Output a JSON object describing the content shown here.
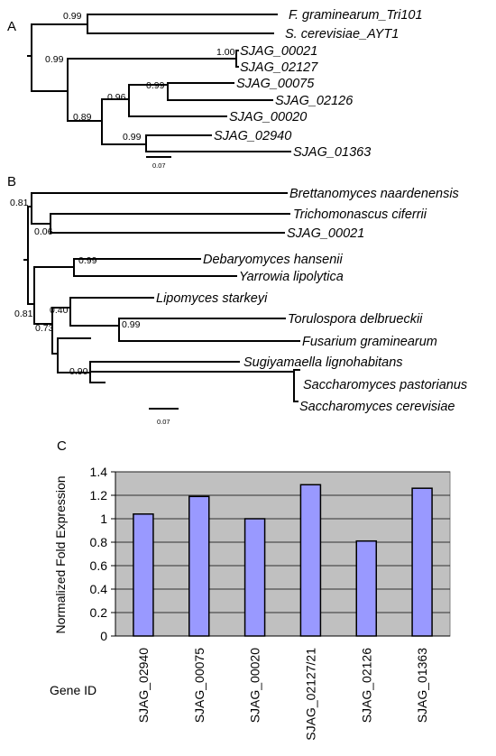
{
  "panel_a": {
    "label": "A",
    "taxa": [
      "F. graminearum_Tri101",
      "S. cerevisiae_AYT1",
      "SJAG_00021",
      "SJAG_02127",
      "SJAG_00075",
      "SJAG_02126",
      "SJAG_00020",
      "SJAG_02940",
      "SJAG_01363"
    ],
    "supports": [
      "0.99",
      "1.00",
      "0.99",
      "0.96",
      "0.99",
      "0.89",
      "0.99"
    ],
    "scale_label": "0.07"
  },
  "panel_b": {
    "label": "B",
    "taxa": [
      "Brettanomyces naardenensis",
      "Trichomonascus ciferrii",
      "SJAG_00021",
      "Debaryomyces hansenii",
      "Yarrowia lipolytica",
      "Lipomyces starkeyi",
      "Torulospora delbrueckii",
      "Fusarium graminearum",
      "Sugiyamaella lignohabitans",
      "Saccharomyces pastorianus",
      "Saccharomyces cerevisiae"
    ],
    "supports": [
      "0.81",
      "0.06",
      "0.99",
      "0.40",
      "0.99",
      "0.81",
      "0.73",
      "0.90"
    ],
    "scale_label": "0.07"
  },
  "panel_c": {
    "label": "C",
    "x_title": "Gene ID",
    "chart_data": {
      "type": "bar",
      "categories": [
        "SJAG_02940",
        "SJAG_00075",
        "SJAG_00020",
        "SJAG_02127/21",
        "SJAG_02126",
        "SJAG_01363"
      ],
      "values": [
        1.04,
        1.19,
        1.0,
        1.29,
        0.81,
        1.26
      ],
      "ylabel": "Normalized Fold Expression",
      "xlabel": "Gene ID",
      "ylim": [
        0,
        1.4
      ],
      "yticks": [
        "0",
        "0.2",
        "0.4",
        "0.6",
        "0.8",
        "1",
        "1.2",
        "1.4"
      ],
      "grid": true,
      "bar_color": "#9999ff",
      "background_color": "#c0c0c0"
    }
  }
}
